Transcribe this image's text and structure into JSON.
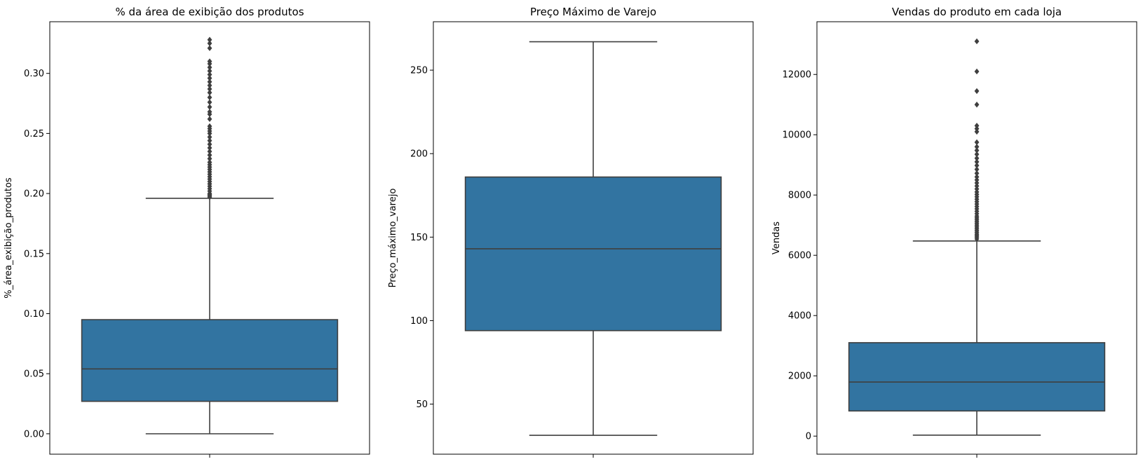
{
  "chart_data": [
    {
      "type": "box",
      "title": "% da área de exibição dos produtos",
      "xlabel": "",
      "ylabel": "%_área_exibição_produtos",
      "ylim": [
        -0.017,
        0.343
      ],
      "yticks": [
        0.0,
        0.05,
        0.1,
        0.15,
        0.2,
        0.25,
        0.3
      ],
      "ytick_labels": [
        "0.00",
        "0.05",
        "0.10",
        "0.15",
        "0.20",
        "0.25",
        "0.30"
      ],
      "box": {
        "whisker_low": 0.0,
        "q1": 0.027,
        "median": 0.054,
        "q3": 0.095,
        "whisker_high": 0.196
      },
      "outliers": [
        0.197,
        0.198,
        0.199,
        0.2,
        0.202,
        0.204,
        0.206,
        0.208,
        0.21,
        0.212,
        0.214,
        0.216,
        0.218,
        0.22,
        0.222,
        0.224,
        0.226,
        0.229,
        0.232,
        0.235,
        0.238,
        0.241,
        0.244,
        0.247,
        0.25,
        0.252,
        0.254,
        0.256,
        0.262,
        0.266,
        0.268,
        0.272,
        0.276,
        0.28,
        0.284,
        0.287,
        0.29,
        0.293,
        0.296,
        0.299,
        0.302,
        0.305,
        0.308,
        0.31,
        0.321,
        0.325,
        0.328
      ],
      "color": "#3274a1"
    },
    {
      "type": "box",
      "title": "Preço Máximo de Varejo",
      "xlabel": "",
      "ylabel": "Preço_máximo_varejo",
      "ylim": [
        20,
        279
      ],
      "yticks": [
        50,
        100,
        150,
        200,
        250
      ],
      "ytick_labels": [
        "50",
        "100",
        "150",
        "200",
        "250"
      ],
      "box": {
        "whisker_low": 31.3,
        "q1": 94,
        "median": 143,
        "q3": 186,
        "whisker_high": 267
      },
      "outliers": [],
      "color": "#3274a1"
    },
    {
      "type": "box",
      "title": "Vendas do produto em cada loja",
      "xlabel": "",
      "ylabel": "Vendas",
      "ylim": [
        -600,
        13750
      ],
      "yticks": [
        0,
        2000,
        4000,
        6000,
        8000,
        10000,
        12000
      ],
      "ytick_labels": [
        "0",
        "2000",
        "4000",
        "6000",
        "8000",
        "10000",
        "12000"
      ],
      "box": {
        "whisker_low": 33,
        "q1": 835,
        "median": 1795,
        "q3": 3100,
        "whisker_high": 6475
      },
      "outliers": [
        6540,
        6600,
        6650,
        6700,
        6760,
        6820,
        6880,
        6940,
        7000,
        7060,
        7120,
        7180,
        7240,
        7300,
        7380,
        7460,
        7540,
        7620,
        7700,
        7780,
        7860,
        7940,
        8020,
        8100,
        8200,
        8300,
        8400,
        8500,
        8600,
        8720,
        8850,
        8980,
        9100,
        9220,
        9350,
        9480,
        9600,
        9750,
        10100,
        10200,
        10300,
        11000,
        11450,
        12100,
        13100
      ],
      "color": "#3274a1"
    }
  ]
}
